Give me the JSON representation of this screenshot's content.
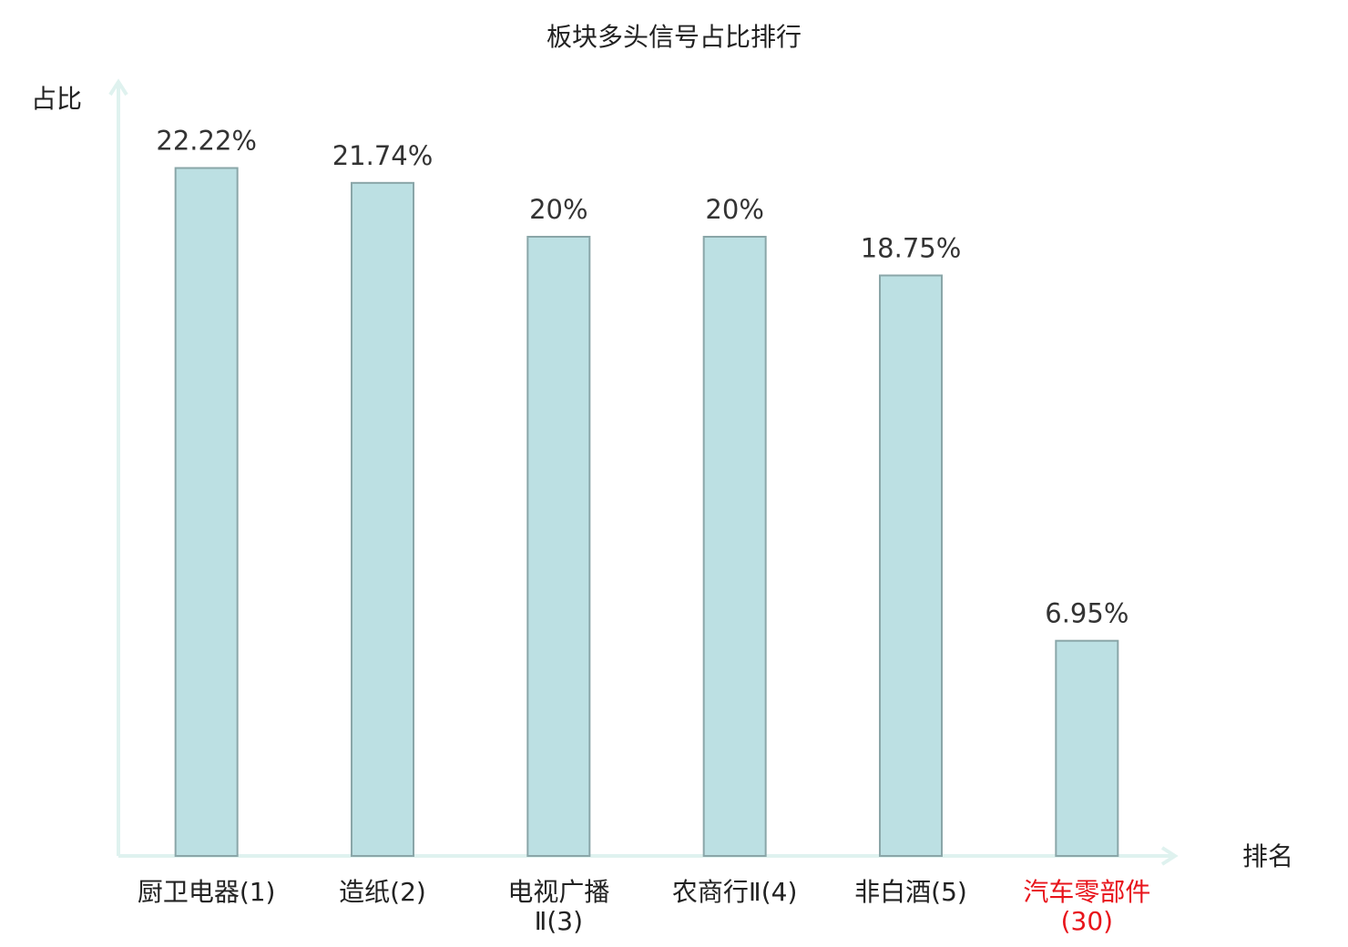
{
  "chart_data": {
    "type": "bar",
    "title": "板块多头信号占比排行",
    "y_label": "占比",
    "x_label": "排名",
    "categories": [
      "厨卫电器(1)",
      "造纸(2)",
      "电视广播Ⅱ(3)",
      "农商行Ⅱ(4)",
      "非白酒(5)",
      "汽车零部件(30)"
    ],
    "category_label_colors": [
      "#222222",
      "#222222",
      "#222222",
      "#222222",
      "#222222",
      "#e8141b"
    ],
    "values": [
      22.22,
      21.74,
      20,
      20,
      18.75,
      6.95
    ],
    "value_labels": [
      "22.22%",
      "21.74%",
      "20%",
      "20%",
      "18.75%",
      "6.95%"
    ],
    "color": "#bce0e3",
    "edge_color": "#8aa6a8",
    "axis_color": "#dff2ef",
    "ylim": [
      0,
      25
    ],
    "grid": false
  }
}
